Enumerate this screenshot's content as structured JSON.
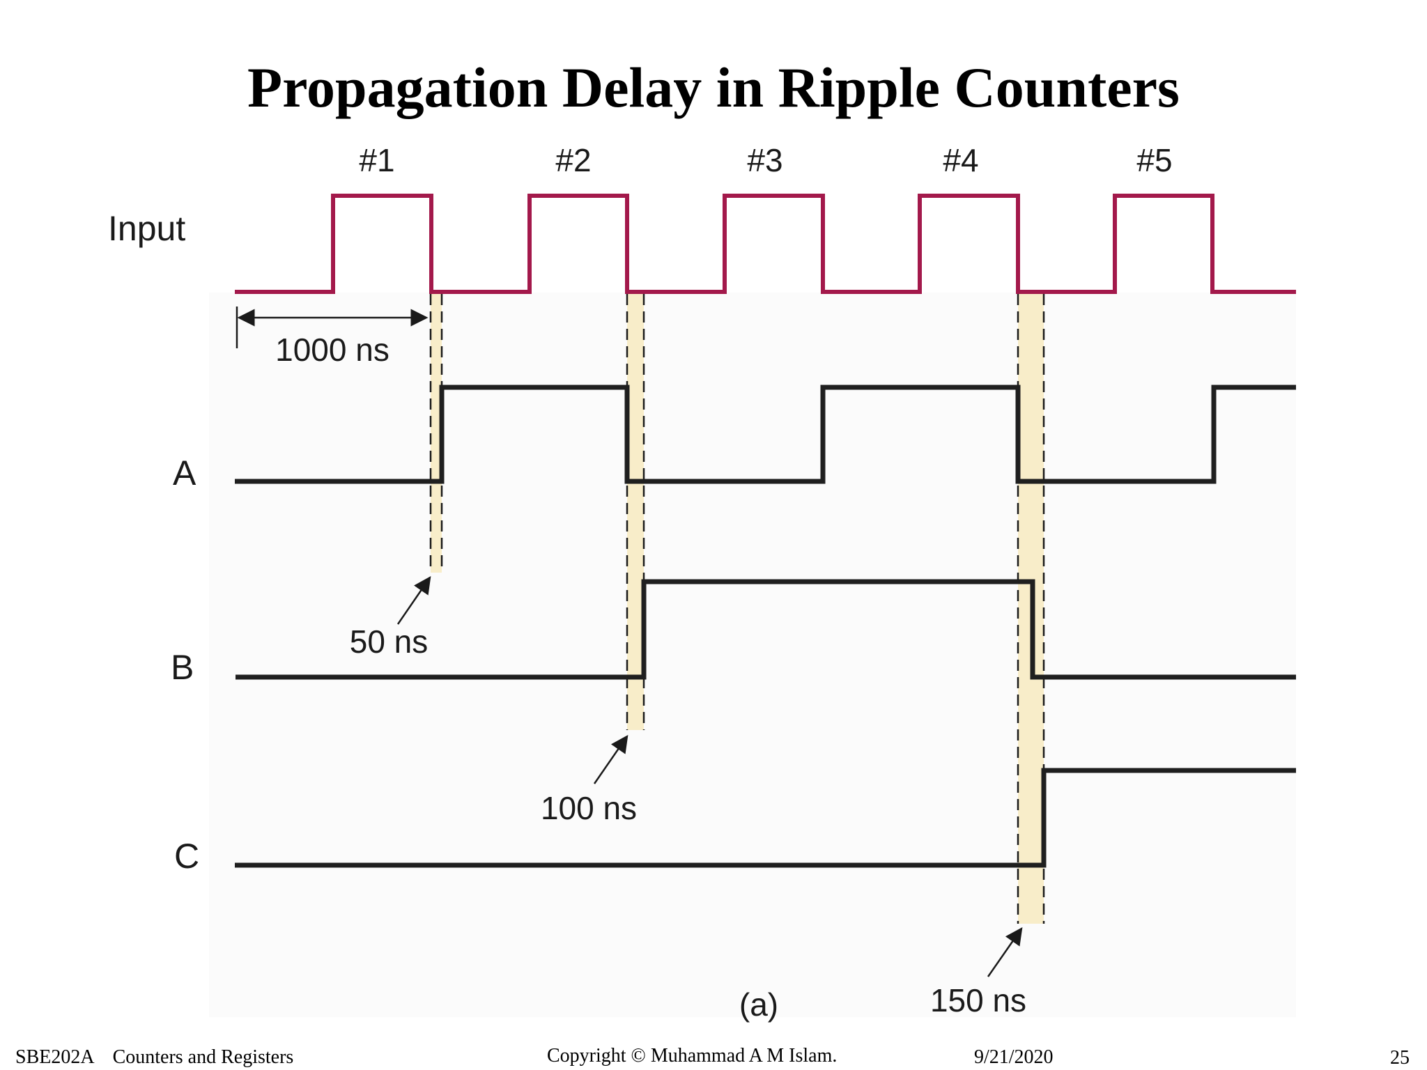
{
  "slide": {
    "title": "Propagation Delay in Ripple Counters"
  },
  "diagram": {
    "pulse_labels": [
      "#1",
      "#2",
      "#3",
      "#4",
      "#5"
    ],
    "signals": [
      {
        "label": "Input",
        "color": "#a3194b"
      },
      {
        "label": "A",
        "color": "#1f1f1f"
      },
      {
        "label": "B",
        "color": "#1f1f1f"
      },
      {
        "label": "C",
        "color": "#1f1f1f"
      }
    ],
    "period_label": "1000 ns",
    "delay_labels": [
      "50 ns",
      "100 ns",
      "150 ns"
    ],
    "caption": "(a)",
    "highlight_color": "#f8edc9"
  },
  "footer": {
    "course": "SBE202A",
    "topic": "Counters and Registers",
    "copyright": "Copyright © Muhammad A M Islam.",
    "date": "9/21/2020",
    "page": "25"
  }
}
